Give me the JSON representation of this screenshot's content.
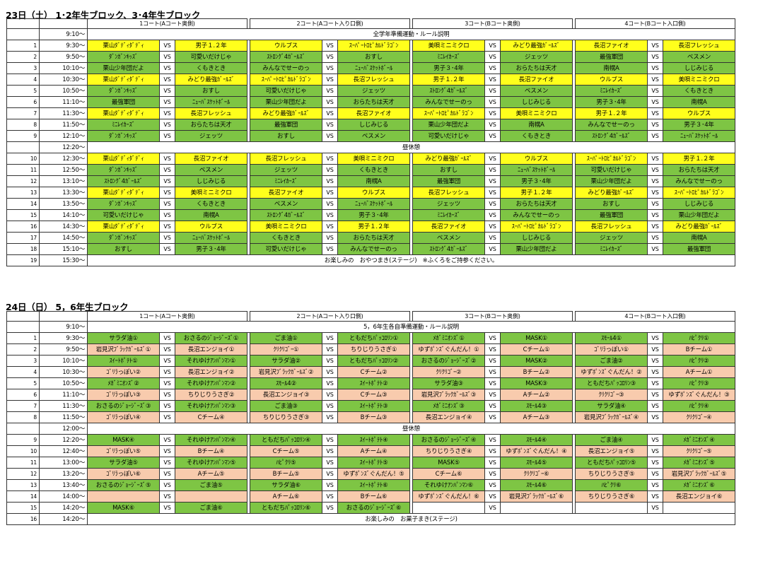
{
  "block1": {
    "title": "23日（土） 1･2年生ブロック、3･4年生ブロック",
    "courts": [
      "1コート(Aコート奥側)",
      "2コート(Aコート入り口側)",
      "3コート(Bコート奥側)",
      "4コート(Bコート入口側)"
    ],
    "rows": [
      {
        "no": "",
        "time": "9:10～",
        "note": "全学年準備運動・ルール説明"
      },
      {
        "no": "1",
        "time": "9:30～",
        "m": [
          [
            "栗山ﾀﾞﾃﾞｨﾀﾞﾃﾞｨ",
            "男子１.２年",
            "y",
            "y"
          ],
          [
            "ウルブス",
            "ｽｰﾊﾟｰﾄﾛﾋﾟｶﾙﾄﾞﾗｺﾞﾝ",
            "y",
            "y"
          ],
          [
            "美唄ミニミクロ",
            "みどり最強ｶﾞｰﾙｽﾞ",
            "y",
            "y"
          ],
          [
            "長沼ファイオ",
            "長沼フレッシュ",
            "y",
            "y"
          ]
        ]
      },
      {
        "no": "2",
        "time": "9:50～",
        "m": [
          [
            "ﾀﾞﾝｶﾞﾝｷｯｽﾞ",
            "可愛いだけじゃ",
            "g",
            "g"
          ],
          [
            "ｽﾄﾛﾝｸﾞ4ｶﾞｰﾙｽﾞ",
            "おすし",
            "g",
            "g"
          ],
          [
            "ﾐﾆﾚｲｶｰｽﾞ",
            "ジェッツ",
            "g",
            "g"
          ],
          [
            "最強軍団",
            "ベスメン",
            "g",
            "g"
          ]
        ]
      },
      {
        "no": "3",
        "time": "10:10～",
        "m": [
          [
            "栗山少年団だよ",
            "くもきとき",
            "g",
            "g"
          ],
          [
            "みんなでせーのっ",
            "ﾆｭｰﾊﾞｽｹｯﾄﾎﾞｰﾙ",
            "g",
            "g"
          ],
          [
            "男子３･4年",
            "おらたちは天才",
            "g",
            "g"
          ],
          [
            "南幌A",
            "しじみじる",
            "g",
            "g"
          ]
        ]
      },
      {
        "no": "4",
        "time": "10:30～",
        "m": [
          [
            "栗山ﾀﾞﾃﾞｨﾀﾞﾃﾞｨ",
            "みどり最強ｶﾞｰﾙｽﾞ",
            "y",
            "y"
          ],
          [
            "ｽｰﾊﾟｰﾄﾛﾋﾟｶﾙﾄﾞﾗｺﾞﾝ",
            "長沼フレッシュ",
            "y",
            "y"
          ],
          [
            "男子１.２年",
            "長沼ファイオ",
            "y",
            "y"
          ],
          [
            "ウルブス",
            "美唄ミニミクロ",
            "y",
            "y"
          ]
        ]
      },
      {
        "no": "5",
        "time": "10:50～",
        "m": [
          [
            "ﾀﾞﾝｶﾞﾝｷｯｽﾞ",
            "おすし",
            "g",
            "g"
          ],
          [
            "可愛いだけじゃ",
            "ジェッツ",
            "g",
            "g"
          ],
          [
            "ｽﾄﾛﾝｸﾞ4ｶﾞｰﾙｽﾞ",
            "ベスメン",
            "g",
            "g"
          ],
          [
            "ﾐﾆﾚｲｶｰｽﾞ",
            "くもきとき",
            "g",
            "g"
          ]
        ]
      },
      {
        "no": "6",
        "time": "11:10～",
        "m": [
          [
            "最強軍団",
            "ﾆｭｰﾊﾞｽｹｯﾄﾎﾞｰﾙ",
            "g",
            "g"
          ],
          [
            "栗山少年団だよ",
            "おらたちは天才",
            "g",
            "g"
          ],
          [
            "みんなでせーのっ",
            "しじみじる",
            "g",
            "g"
          ],
          [
            "男子３･4年",
            "南幌A",
            "g",
            "g"
          ]
        ]
      },
      {
        "no": "7",
        "time": "11:30～",
        "m": [
          [
            "栗山ﾀﾞﾃﾞｨﾀﾞﾃﾞｨ",
            "長沼フレッシュ",
            "y",
            "y"
          ],
          [
            "みどり最強ｶﾞｰﾙｽﾞ",
            "長沼ファイオ",
            "y",
            "y"
          ],
          [
            "ｽｰﾊﾟｰﾄﾛﾋﾟｶﾙﾄﾞﾗｺﾞﾝ",
            "美唄ミニミクロ",
            "y",
            "y"
          ],
          [
            "男子１.２年",
            "ウルブス",
            "y",
            "y"
          ]
        ]
      },
      {
        "no": "8",
        "time": "11:50～",
        "m": [
          [
            "ﾐﾆﾚｲｶｰｽﾞ",
            "おらたちは天才",
            "g",
            "g"
          ],
          [
            "最強軍団",
            "しじみじる",
            "g",
            "g"
          ],
          [
            "栗山少年団だよ",
            "南幌A",
            "g",
            "g"
          ],
          [
            "みんなでせーのっ",
            "男子３･4年",
            "g",
            "g"
          ]
        ]
      },
      {
        "no": "9",
        "time": "12:10～",
        "m": [
          [
            "ﾀﾞﾝｶﾞﾝｷｯｽﾞ",
            "ジェッツ",
            "g",
            "g"
          ],
          [
            "おすし",
            "ベスメン",
            "g",
            "g"
          ],
          [
            "可愛いだけじゃ",
            "くもきとき",
            "g",
            "g"
          ],
          [
            "ｽﾄﾛﾝｸﾞ4ｶﾞｰﾙｽﾞ",
            "ﾆｭｰﾊﾞｽｹｯﾄﾎﾞｰﾙ",
            "g",
            "g"
          ]
        ]
      },
      {
        "no": "",
        "time": "12:20～",
        "note": "昼休憩"
      },
      {
        "no": "10",
        "time": "12:30～",
        "m": [
          [
            "栗山ﾀﾞﾃﾞｨﾀﾞﾃﾞｨ",
            "長沼ファイオ",
            "y",
            "y"
          ],
          [
            "長沼フレッシュ",
            "美唄ミニミクロ",
            "y",
            "y"
          ],
          [
            "みどり最強ｶﾞｰﾙｽﾞ",
            "ウルブス",
            "y",
            "y"
          ],
          [
            "ｽｰﾊﾟｰﾄﾛﾋﾟｶﾙﾄﾞﾗｺﾞﾝ",
            "男子１.２年",
            "y",
            "y"
          ]
        ]
      },
      {
        "no": "11",
        "time": "12:50～",
        "m": [
          [
            "ﾀﾞﾝｶﾞﾝｷｯｽﾞ",
            "ベスメン",
            "g",
            "g"
          ],
          [
            "ジェッツ",
            "くもきとき",
            "g",
            "g"
          ],
          [
            "おすし",
            "ﾆｭｰﾊﾞｽｹｯﾄﾎﾞｰﾙ",
            "g",
            "g"
          ],
          [
            "可愛いだけじゃ",
            "おらたちは天才",
            "g",
            "g"
          ]
        ]
      },
      {
        "no": "12",
        "time": "13:10～",
        "m": [
          [
            "ｽﾄﾛﾝｸﾞ4ｶﾞｰﾙｽﾞ",
            "しじみじる",
            "g",
            "g"
          ],
          [
            "ﾐﾆﾚｲｶｰｽﾞ",
            "南幌A",
            "g",
            "g"
          ],
          [
            "最強軍団",
            "男子３･4年",
            "g",
            "g"
          ],
          [
            "栗山少年団だよ",
            "みんなでせーのっ",
            "g",
            "g"
          ]
        ]
      },
      {
        "no": "13",
        "time": "13:30～",
        "m": [
          [
            "栗山ﾀﾞﾃﾞｨﾀﾞﾃﾞｨ",
            "美唄ミニミクロ",
            "y",
            "y"
          ],
          [
            "長沼ファイオ",
            "ウルブス",
            "y",
            "y"
          ],
          [
            "長沼フレッシュ",
            "男子１.２年",
            "y",
            "y"
          ],
          [
            "みどり最強ｶﾞｰﾙｽﾞ",
            "ｽｰﾊﾟｰﾄﾛﾋﾟｶﾙﾄﾞﾗｺﾞﾝ",
            "y",
            "y"
          ]
        ]
      },
      {
        "no": "14",
        "time": "13:50～",
        "m": [
          [
            "ﾀﾞﾝｶﾞﾝｷｯｽﾞ",
            "くもきとき",
            "g",
            "g"
          ],
          [
            "ベスメン",
            "ﾆｭｰﾊﾞｽｹｯﾄﾎﾞｰﾙ",
            "g",
            "g"
          ],
          [
            "ジェッツ",
            "おらたちは天才",
            "g",
            "g"
          ],
          [
            "おすし",
            "しじみじる",
            "g",
            "g"
          ]
        ]
      },
      {
        "no": "15",
        "time": "14:10～",
        "m": [
          [
            "可愛いだけじゃ",
            "南幌A",
            "g",
            "g"
          ],
          [
            "ｽﾄﾛﾝｸﾞ4ｶﾞｰﾙｽﾞ",
            "男子３･4年",
            "g",
            "g"
          ],
          [
            "ﾐﾆﾚｲｶｰｽﾞ",
            "みんなでせーのっ",
            "g",
            "g"
          ],
          [
            "最強軍団",
            "栗山少年団だよ",
            "g",
            "g"
          ]
        ]
      },
      {
        "no": "16",
        "time": "14:30～",
        "m": [
          [
            "栗山ﾀﾞﾃﾞｨﾀﾞﾃﾞｨ",
            "ウルブス",
            "y",
            "y"
          ],
          [
            "美唄ミニミクロ",
            "男子１.２年",
            "y",
            "y"
          ],
          [
            "長沼ファイオ",
            "ｽｰﾊﾟｰﾄﾛﾋﾟｶﾙﾄﾞﾗｺﾞﾝ",
            "y",
            "y"
          ],
          [
            "長沼フレッシュ",
            "みどり最強ｶﾞｰﾙｽﾞ",
            "y",
            "y"
          ]
        ]
      },
      {
        "no": "17",
        "time": "14:50～",
        "m": [
          [
            "ﾀﾞﾝｶﾞﾝｷｯｽﾞ",
            "ﾆｭｰﾊﾞｽｹｯﾄﾎﾞｰﾙ",
            "g",
            "g"
          ],
          [
            "くもきとき",
            "おらたちは天才",
            "g",
            "g"
          ],
          [
            "ベスメン",
            "しじみじる",
            "g",
            "g"
          ],
          [
            "ジェッツ",
            "南幌A",
            "g",
            "g"
          ]
        ]
      },
      {
        "no": "18",
        "time": "15:10～",
        "m": [
          [
            "おすし",
            "男子３･4年",
            "g",
            "g"
          ],
          [
            "可愛いだけじゃ",
            "みんなでせーのっ",
            "g",
            "g"
          ],
          [
            "ｽﾄﾛﾝｸﾞ4ｶﾞｰﾙｽﾞ",
            "栗山少年団だよ",
            "g",
            "g"
          ],
          [
            "ﾐﾆﾚｲｶｰｽﾞ",
            "最強軍団",
            "g",
            "g"
          ]
        ]
      },
      {
        "no": "19",
        "time": "15:30～",
        "note": "お楽しみの　おやつまき(ステージ)　※ふくろをご持参ください。"
      }
    ]
  },
  "block2": {
    "title": "24日（日） 5，6年生ブロック",
    "courts": [
      "1コート(Aコート奥側)",
      "2コート(Aコート入り口側)",
      "3コート(Bコート奥側)",
      "4コート(Bコート入口側)"
    ],
    "rows": [
      {
        "no": "",
        "time": "9:10～",
        "note": "5，6年生各自準備運動・ルール説明"
      },
      {
        "no": "1",
        "time": "9:30～",
        "m": [
          [
            "サラダ油①",
            "おさるのｼﾞｮｰｼﾞｰｽﾞ①",
            "g",
            "g"
          ],
          [
            "ごま油①",
            "ともだちﾊﾟｯｺﾛﾘﾝ①",
            "g",
            "g"
          ],
          [
            "ﾒｶﾞﾐﾆｵﾝｽﾞ①",
            "MASK①",
            "g",
            "g"
          ],
          [
            "ｽﾓｰﾙ4①",
            "ﾊﾋﾟｸﾘ①",
            "g",
            "g"
          ]
        ]
      },
      {
        "no": "2",
        "time": "9:50～",
        "m": [
          [
            "岩見沢ﾌﾞﾗｯｸｶﾞｰﾙｽﾞ①",
            "長沼エンジョイ①",
            "p",
            "p"
          ],
          [
            "ｸﾘｸﾘｺﾞｰ①",
            "ちりじりうさぎ①",
            "p",
            "p"
          ],
          [
            "ゆずﾎﾟﾝｽﾞぐんだん！①",
            "Cチーム①",
            "p",
            "p"
          ],
          [
            "ｺﾞﾘﾗっぽい①",
            "Bチーム①",
            "p",
            "p"
          ]
        ]
      },
      {
        "no": "3",
        "time": "10:10～",
        "m": [
          [
            "ｽｲｰﾄﾎﾟﾃﾄ①",
            "それゆけｱﾝﾊﾟﾝﾏﾝ①",
            "g",
            "g"
          ],
          [
            "サラダ油②",
            "ともだちﾊﾟｯｺﾛﾘﾝ②",
            "g",
            "g"
          ],
          [
            "おさるのｼﾞｮｰｼﾞｰｽﾞ②",
            "MASK②",
            "g",
            "g"
          ],
          [
            "ごま油②",
            "ﾊﾋﾟｸﾘ②",
            "g",
            "g"
          ]
        ]
      },
      {
        "no": "4",
        "time": "10:30～",
        "m": [
          [
            "ｺﾞﾘﾗっぽい②",
            "長沼エンジョイ②",
            "p",
            "p"
          ],
          [
            "岩見沢ﾌﾞﾗｯｸｶﾞｰﾙｽﾞ②",
            "Cチーム②",
            "p",
            "p"
          ],
          [
            "ｸﾘｸﾘｺﾞｰ②",
            "Bチーム②",
            "p",
            "p"
          ],
          [
            "ゆずﾎﾟﾝｽﾞぐんだん！②",
            "Aチーム①",
            "p",
            "p"
          ]
        ]
      },
      {
        "no": "5",
        "time": "10:50～",
        "m": [
          [
            "ﾒｶﾞﾐﾆｵﾝｽﾞ②",
            "それゆけｱﾝﾊﾟﾝﾏﾝ②",
            "g",
            "g"
          ],
          [
            "ｽﾓｰﾙ4②",
            "ｽｲｰﾄﾎﾟﾃﾄ②",
            "g",
            "g"
          ],
          [
            "サラダ油③",
            "MASK③",
            "g",
            "g"
          ],
          [
            "ともだちﾊﾟｯｺﾛﾘﾝ③",
            "ﾊﾋﾟｸﾘ③",
            "g",
            "g"
          ]
        ]
      },
      {
        "no": "6",
        "time": "11:10～",
        "m": [
          [
            "ｺﾞﾘﾗっぽい③",
            "ちりじりうさぎ②",
            "p",
            "p"
          ],
          [
            "長沼エンジョイ③",
            "Cチーム③",
            "p",
            "p"
          ],
          [
            "岩見沢ﾌﾞﾗｯｸｶﾞｰﾙｽﾞ③",
            "Aチーム②",
            "p",
            "p"
          ],
          [
            "ｸﾘｸﾘｺﾞｰ③",
            "ゆずﾎﾟﾝｽﾞぐんだん！③",
            "p",
            "p"
          ]
        ]
      },
      {
        "no": "7",
        "time": "11:30～",
        "m": [
          [
            "おさるのｼﾞｮｰｼﾞｰｽﾞ③",
            "それゆけｱﾝﾊﾟﾝﾏﾝ③",
            "g",
            "g"
          ],
          [
            "ごま油③",
            "ｽｲｰﾄﾎﾟﾃﾄ③",
            "g",
            "g"
          ],
          [
            "ﾒｶﾞﾐﾆｵﾝｽﾞ③",
            "ｽﾓｰﾙ4③",
            "g",
            "g"
          ],
          [
            "サラダ油④",
            "ﾊﾋﾟｸﾘ④",
            "g",
            "g"
          ]
        ]
      },
      {
        "no": "8",
        "time": "11:50～",
        "m": [
          [
            "ｺﾞﾘﾗっぽい④",
            "Cチーム④",
            "p",
            "p"
          ],
          [
            "ちりじりうさぎ③",
            "Bチーム③",
            "p",
            "p"
          ],
          [
            "長沼エンジョイ④",
            "Aチーム③",
            "p",
            "p"
          ],
          [
            "岩見沢ﾌﾞﾗｯｸｶﾞｰﾙｽﾞ④",
            "ｸﾘｸﾘｺﾞｰ④",
            "p",
            "p"
          ]
        ]
      },
      {
        "no": "",
        "time": "12:00～",
        "note": "昼休憩"
      },
      {
        "no": "9",
        "time": "12:20～",
        "m": [
          [
            "MASK④",
            "それゆけｱﾝﾊﾟﾝﾏﾝ④",
            "g",
            "g"
          ],
          [
            "ともだちﾊﾟｯｺﾛﾘﾝ④",
            "ｽｲｰﾄﾎﾟﾃﾄ④",
            "g",
            "g"
          ],
          [
            "おさるのｼﾞｮｰｼﾞｰｽﾞ④",
            "ｽﾓｰﾙ4④",
            "g",
            "g"
          ],
          [
            "ごま油④",
            "ﾒｶﾞﾐﾆｵﾝｽﾞ④",
            "g",
            "g"
          ]
        ]
      },
      {
        "no": "10",
        "time": "12:40～",
        "m": [
          [
            "ｺﾞﾘﾗっぽい⑤",
            "Bチーム④",
            "p",
            "p"
          ],
          [
            "Cチーム⑤",
            "Aチーム④",
            "p",
            "p"
          ],
          [
            "ちりじりうさぎ④",
            "ゆずﾎﾟﾝｽﾞぐんだん！④",
            "p",
            "p"
          ],
          [
            "長沼エンジョイ⑤",
            "ｸﾘｸﾘｺﾞｰ⑤",
            "p",
            "p"
          ]
        ]
      },
      {
        "no": "11",
        "time": "13:00～",
        "m": [
          [
            "サラダ油⑤",
            "それゆけｱﾝﾊﾟﾝﾏﾝ⑤",
            "g",
            "g"
          ],
          [
            "ﾊﾋﾟｸﾘ⑤",
            "ｽｲｰﾄﾎﾟﾃﾄ⑤",
            "g",
            "g"
          ],
          [
            "MASK⑤",
            "ｽﾓｰﾙ4⑤",
            "g",
            "g"
          ],
          [
            "ともだちﾊﾟｯｺﾛﾘﾝ⑤",
            "ﾒｶﾞﾐﾆｵﾝｽﾞ⑤",
            "g",
            "g"
          ]
        ]
      },
      {
        "no": "12",
        "time": "13:20～",
        "m": [
          [
            "ｺﾞﾘﾗっぽい⑥",
            "Aチーム⑤",
            "p",
            "p"
          ],
          [
            "Bチーム⑤",
            "ゆずﾎﾟﾝｽﾞぐんだん！⑤",
            "p",
            "p"
          ],
          [
            "Cチーム⑥",
            "ｸﾘｸﾘｺﾞｰ⑥",
            "p",
            "p"
          ],
          [
            "ちりじりうさぎ⑤",
            "岩見沢ﾌﾞﾗｯｸｶﾞｰﾙｽﾞ⑤",
            "p",
            "p"
          ]
        ]
      },
      {
        "no": "13",
        "time": "13:40～",
        "m": [
          [
            "おさるのｼﾞｮｰｼﾞｰｽﾞ⑤",
            "ごま油⑤",
            "g",
            "g"
          ],
          [
            "サラダ油⑥",
            "ｽｲｰﾄﾎﾟﾃﾄ⑥",
            "g",
            "g"
          ],
          [
            "それゆけｱﾝﾊﾟﾝﾏﾝ⑥",
            "ｽﾓｰﾙ4⑥",
            "g",
            "g"
          ],
          [
            "ﾊﾋﾟｸﾘ⑥",
            "ﾒｶﾞﾐﾆｵﾝｽﾞ⑥",
            "g",
            "g"
          ]
        ]
      },
      {
        "no": "14",
        "time": "14:00～",
        "m": [
          [
            "",
            "",
            "p",
            "p"
          ],
          [
            "Aチーム⑥",
            "Bチーム⑥",
            "p",
            "p"
          ],
          [
            "ゆずﾎﾟﾝｽﾞぐんだん！⑥",
            "岩見沢ﾌﾞﾗｯｸｶﾞｰﾙｽﾞ⑥",
            "p",
            "p"
          ],
          [
            "ちりじりうさぎ⑥",
            "長沼エンジョイ⑥",
            "p",
            "p"
          ]
        ]
      },
      {
        "no": "15",
        "time": "14:20～",
        "m": [
          [
            "MASK⑥",
            "ごま油⑥",
            "g",
            "g"
          ],
          [
            "ともだちﾊﾟｯｺﾛﾘﾝ⑥",
            "おさるのｼﾞｮｰｼﾞｰｽﾞ⑥",
            "g",
            "g"
          ],
          [
            "",
            "",
            "w",
            "w"
          ],
          [
            "",
            "",
            "w",
            "w"
          ]
        ]
      },
      {
        "no": "16",
        "time": "14:20～",
        "note": "お楽しみの　お菓子まき(ステージ)"
      }
    ]
  },
  "vs_label": "VS",
  "colors": {
    "green": "#7ec544",
    "yellow": "#ffff1c",
    "pink": "#f8cbad"
  }
}
